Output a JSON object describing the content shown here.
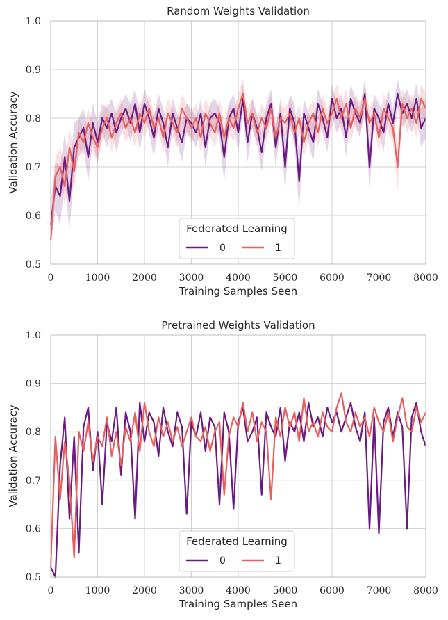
{
  "chart_data": [
    {
      "type": "line",
      "title": "Random Weights Validation",
      "xlabel": "Training Samples Seen",
      "ylabel": "Validation Accuracy",
      "xlim": [
        0,
        8000
      ],
      "ylim": [
        0.5,
        1.0
      ],
      "xticks": [
        0,
        1000,
        2000,
        3000,
        4000,
        5000,
        6000,
        7000,
        8000
      ],
      "yticks": [
        0.5,
        0.6,
        0.7,
        0.8,
        0.9,
        1.0
      ],
      "grid": true,
      "confidence_band": true,
      "legend": {
        "title": "Federated Learning",
        "position": "bottom-center"
      },
      "series": [
        {
          "name": "0",
          "color": "#6a1b82",
          "x": [
            0,
            100,
            200,
            300,
            400,
            500,
            600,
            700,
            800,
            900,
            1000,
            1100,
            1200,
            1300,
            1400,
            1500,
            1600,
            1700,
            1800,
            1900,
            2000,
            2100,
            2200,
            2300,
            2400,
            2500,
            2600,
            2700,
            2800,
            2900,
            3000,
            3100,
            3200,
            3300,
            3400,
            3500,
            3600,
            3700,
            3800,
            3900,
            4000,
            4100,
            4200,
            4300,
            4400,
            4500,
            4600,
            4700,
            4800,
            4900,
            5000,
            5100,
            5200,
            5300,
            5400,
            5500,
            5600,
            5700,
            5800,
            5900,
            6000,
            6100,
            6200,
            6300,
            6400,
            6500,
            6600,
            6700,
            6800,
            6900,
            7000,
            7100,
            7200,
            7300,
            7400,
            7500,
            7600,
            7700,
            7800,
            7900,
            8000
          ],
          "y": [
            0.58,
            0.66,
            0.64,
            0.72,
            0.63,
            0.74,
            0.76,
            0.78,
            0.72,
            0.79,
            0.75,
            0.8,
            0.78,
            0.81,
            0.77,
            0.8,
            0.82,
            0.79,
            0.83,
            0.77,
            0.83,
            0.8,
            0.76,
            0.82,
            0.79,
            0.74,
            0.81,
            0.78,
            0.75,
            0.8,
            0.79,
            0.77,
            0.81,
            0.74,
            0.8,
            0.81,
            0.79,
            0.72,
            0.8,
            0.82,
            0.77,
            0.84,
            0.75,
            0.81,
            0.78,
            0.73,
            0.8,
            0.83,
            0.74,
            0.81,
            0.7,
            0.82,
            0.79,
            0.67,
            0.81,
            0.78,
            0.75,
            0.83,
            0.8,
            0.76,
            0.84,
            0.8,
            0.82,
            0.76,
            0.84,
            0.81,
            0.79,
            0.85,
            0.7,
            0.82,
            0.8,
            0.77,
            0.83,
            0.79,
            0.85,
            0.81,
            0.83,
            0.8,
            0.84,
            0.78,
            0.8
          ],
          "band_halfwidth": [
            0.04,
            0.05,
            0.06,
            0.05,
            0.06,
            0.05,
            0.04,
            0.04,
            0.05,
            0.04,
            0.04,
            0.03,
            0.04,
            0.03,
            0.04,
            0.03,
            0.03,
            0.04,
            0.03,
            0.04,
            0.03,
            0.03,
            0.04,
            0.03,
            0.03,
            0.04,
            0.03,
            0.03,
            0.04,
            0.03,
            0.03,
            0.03,
            0.03,
            0.04,
            0.03,
            0.03,
            0.03,
            0.05,
            0.03,
            0.03,
            0.04,
            0.03,
            0.04,
            0.03,
            0.03,
            0.04,
            0.03,
            0.03,
            0.04,
            0.03,
            0.05,
            0.03,
            0.04,
            0.06,
            0.03,
            0.03,
            0.04,
            0.03,
            0.03,
            0.03,
            0.03,
            0.03,
            0.03,
            0.04,
            0.03,
            0.03,
            0.03,
            0.03,
            0.05,
            0.03,
            0.03,
            0.04,
            0.03,
            0.03,
            0.03,
            0.03,
            0.03,
            0.03,
            0.03,
            0.04,
            0.04
          ]
        },
        {
          "name": "1",
          "color": "#e8605d",
          "x": [
            0,
            100,
            200,
            300,
            400,
            500,
            600,
            700,
            800,
            900,
            1000,
            1100,
            1200,
            1300,
            1400,
            1500,
            1600,
            1700,
            1800,
            1900,
            2000,
            2100,
            2200,
            2300,
            2400,
            2500,
            2600,
            2700,
            2800,
            2900,
            3000,
            3100,
            3200,
            3300,
            3400,
            3500,
            3600,
            3700,
            3800,
            3900,
            4000,
            4100,
            4200,
            4300,
            4400,
            4500,
            4600,
            4700,
            4800,
            4900,
            5000,
            5100,
            5200,
            5300,
            5400,
            5500,
            5600,
            5700,
            5800,
            5900,
            6000,
            6100,
            6200,
            6300,
            6400,
            6500,
            6600,
            6700,
            6800,
            6900,
            7000,
            7100,
            7200,
            7300,
            7400,
            7500,
            7600,
            7700,
            7800,
            7900,
            8000
          ],
          "y": [
            0.55,
            0.68,
            0.7,
            0.66,
            0.74,
            0.69,
            0.77,
            0.75,
            0.79,
            0.76,
            0.74,
            0.78,
            0.8,
            0.76,
            0.79,
            0.81,
            0.78,
            0.8,
            0.77,
            0.81,
            0.79,
            0.82,
            0.78,
            0.8,
            0.76,
            0.81,
            0.79,
            0.77,
            0.82,
            0.8,
            0.78,
            0.8,
            0.76,
            0.81,
            0.79,
            0.77,
            0.81,
            0.76,
            0.8,
            0.78,
            0.82,
            0.85,
            0.79,
            0.81,
            0.77,
            0.8,
            0.78,
            0.82,
            0.76,
            0.8,
            0.79,
            0.81,
            0.77,
            0.8,
            0.75,
            0.79,
            0.81,
            0.77,
            0.82,
            0.79,
            0.81,
            0.84,
            0.8,
            0.83,
            0.78,
            0.82,
            0.8,
            0.84,
            0.79,
            0.81,
            0.76,
            0.82,
            0.8,
            0.78,
            0.7,
            0.83,
            0.8,
            0.82,
            0.79,
            0.84,
            0.82
          ],
          "band_halfwidth": [
            0.03,
            0.04,
            0.04,
            0.04,
            0.04,
            0.04,
            0.03,
            0.03,
            0.03,
            0.03,
            0.03,
            0.03,
            0.03,
            0.03,
            0.03,
            0.03,
            0.03,
            0.03,
            0.03,
            0.03,
            0.03,
            0.03,
            0.03,
            0.03,
            0.03,
            0.03,
            0.03,
            0.03,
            0.03,
            0.03,
            0.03,
            0.03,
            0.03,
            0.03,
            0.03,
            0.03,
            0.03,
            0.03,
            0.03,
            0.03,
            0.03,
            0.03,
            0.03,
            0.03,
            0.03,
            0.03,
            0.03,
            0.03,
            0.03,
            0.03,
            0.03,
            0.03,
            0.03,
            0.03,
            0.03,
            0.03,
            0.03,
            0.03,
            0.03,
            0.03,
            0.03,
            0.03,
            0.03,
            0.03,
            0.03,
            0.03,
            0.03,
            0.03,
            0.03,
            0.03,
            0.03,
            0.03,
            0.03,
            0.03,
            0.05,
            0.03,
            0.03,
            0.03,
            0.03,
            0.03,
            0.03
          ]
        }
      ]
    },
    {
      "type": "line",
      "title": "Pretrained Weights Validation",
      "xlabel": "Training Samples Seen",
      "ylabel": "Validation Accuracy",
      "xlim": [
        0,
        8000
      ],
      "ylim": [
        0.5,
        1.0
      ],
      "xticks": [
        0,
        1000,
        2000,
        3000,
        4000,
        5000,
        6000,
        7000,
        8000
      ],
      "yticks": [
        0.5,
        0.6,
        0.7,
        0.8,
        0.9,
        1.0
      ],
      "grid": true,
      "confidence_band": false,
      "legend": {
        "title": "Federated Learning",
        "position": "bottom-center"
      },
      "series": [
        {
          "name": "0",
          "color": "#6a1b82",
          "x": [
            0,
            100,
            200,
            300,
            400,
            500,
            600,
            700,
            800,
            900,
            1000,
            1100,
            1200,
            1300,
            1400,
            1500,
            1600,
            1700,
            1800,
            1900,
            2000,
            2100,
            2200,
            2300,
            2400,
            2500,
            2600,
            2700,
            2800,
            2900,
            3000,
            3100,
            3200,
            3300,
            3400,
            3500,
            3600,
            3700,
            3800,
            3900,
            4000,
            4100,
            4200,
            4300,
            4400,
            4500,
            4600,
            4700,
            4800,
            4900,
            5000,
            5100,
            5200,
            5300,
            5400,
            5500,
            5600,
            5700,
            5800,
            5900,
            6000,
            6100,
            6200,
            6300,
            6400,
            6500,
            6600,
            6700,
            6800,
            6900,
            7000,
            7100,
            7200,
            7300,
            7400,
            7500,
            7600,
            7700,
            7800,
            7900,
            8000
          ],
          "y": [
            0.52,
            0.5,
            0.73,
            0.83,
            0.62,
            0.79,
            0.55,
            0.81,
            0.85,
            0.72,
            0.8,
            0.65,
            0.82,
            0.78,
            0.85,
            0.71,
            0.84,
            0.8,
            0.62,
            0.86,
            0.78,
            0.84,
            0.82,
            0.75,
            0.85,
            0.8,
            0.77,
            0.84,
            0.81,
            0.63,
            0.82,
            0.79,
            0.84,
            0.76,
            0.83,
            0.81,
            0.65,
            0.84,
            0.8,
            0.64,
            0.82,
            0.85,
            0.78,
            0.8,
            0.83,
            0.67,
            0.84,
            0.81,
            0.79,
            0.85,
            0.74,
            0.82,
            0.8,
            0.84,
            0.78,
            0.86,
            0.81,
            0.83,
            0.79,
            0.85,
            0.82,
            0.84,
            0.8,
            0.83,
            0.86,
            0.81,
            0.78,
            0.84,
            0.6,
            0.83,
            0.59,
            0.82,
            0.85,
            0.79,
            0.84,
            0.81,
            0.6,
            0.83,
            0.86,
            0.8,
            0.77
          ]
        },
        {
          "name": "1",
          "color": "#e8605d",
          "x": [
            0,
            100,
            200,
            300,
            400,
            500,
            600,
            700,
            800,
            900,
            1000,
            1100,
            1200,
            1300,
            1400,
            1500,
            1600,
            1700,
            1800,
            1900,
            2000,
            2100,
            2200,
            2300,
            2400,
            2500,
            2600,
            2700,
            2800,
            2900,
            3000,
            3100,
            3200,
            3300,
            3400,
            3500,
            3600,
            3700,
            3800,
            3900,
            4000,
            4100,
            4200,
            4300,
            4400,
            4500,
            4600,
            4700,
            4800,
            4900,
            5000,
            5100,
            5200,
            5300,
            5400,
            5500,
            5600,
            5700,
            5800,
            5900,
            6000,
            6100,
            6200,
            6300,
            6400,
            6500,
            6600,
            6700,
            6800,
            6900,
            7000,
            7100,
            7200,
            7300,
            7400,
            7500,
            7600,
            7700,
            7800,
            7900,
            8000
          ],
          "y": [
            0.52,
            0.79,
            0.66,
            0.78,
            0.7,
            0.54,
            0.8,
            0.76,
            0.82,
            0.74,
            0.79,
            0.77,
            0.83,
            0.75,
            0.8,
            0.73,
            0.81,
            0.78,
            0.84,
            0.76,
            0.86,
            0.8,
            0.77,
            0.83,
            0.79,
            0.82,
            0.78,
            0.81,
            0.77,
            0.8,
            0.83,
            0.79,
            0.78,
            0.81,
            0.76,
            0.8,
            0.82,
            0.67,
            0.79,
            0.83,
            0.81,
            0.86,
            0.8,
            0.84,
            0.78,
            0.82,
            0.8,
            0.66,
            0.83,
            0.79,
            0.85,
            0.81,
            0.84,
            0.78,
            0.87,
            0.8,
            0.82,
            0.79,
            0.84,
            0.81,
            0.8,
            0.85,
            0.88,
            0.82,
            0.8,
            0.84,
            0.81,
            0.83,
            0.79,
            0.85,
            0.82,
            0.8,
            0.84,
            0.78,
            0.83,
            0.87,
            0.81,
            0.8,
            0.85,
            0.82,
            0.84
          ]
        }
      ]
    }
  ]
}
